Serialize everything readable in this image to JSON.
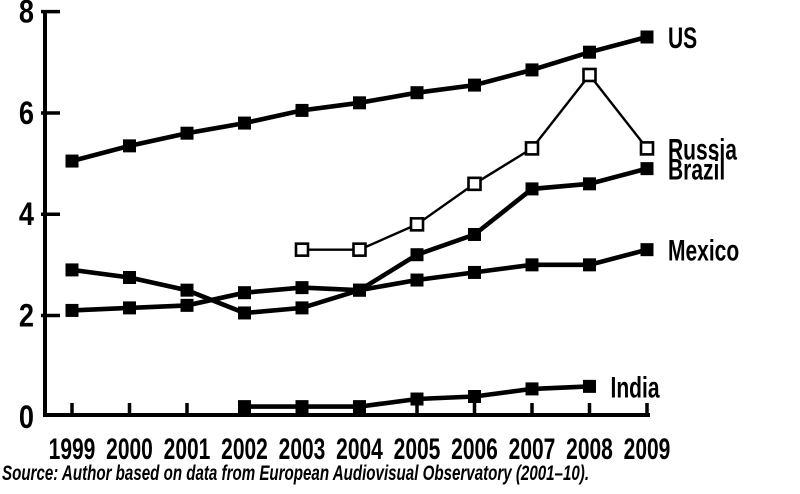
{
  "figure": {
    "background_color": "#ffffff",
    "ink_color": "#000000"
  },
  "chart_data": {
    "type": "line",
    "title": "",
    "xlabel": "",
    "ylabel": "",
    "x_categories": [
      "1999",
      "2000",
      "2001",
      "2002",
      "2003",
      "2004",
      "2005",
      "2006",
      "2007",
      "2008",
      "2009"
    ],
    "ylim": [
      0,
      8
    ],
    "yticks": [
      0,
      2,
      4,
      6,
      8
    ],
    "grid": false,
    "legend_position": "line-end-labels-right",
    "series": [
      {
        "label": "US",
        "marker": "filled-square",
        "values": [
          5.05,
          5.35,
          5.6,
          5.8,
          6.05,
          6.2,
          6.4,
          6.55,
          6.85,
          7.2,
          7.5
        ]
      },
      {
        "label": "Russia",
        "marker": "open-square",
        "values": [
          null,
          null,
          null,
          null,
          3.3,
          3.3,
          3.8,
          4.6,
          5.3,
          6.75,
          5.3
        ]
      },
      {
        "label": "Brazil",
        "marker": "filled-square",
        "values": [
          2.9,
          2.75,
          2.5,
          2.05,
          2.15,
          2.5,
          3.2,
          3.6,
          4.5,
          4.6,
          4.9
        ]
      },
      {
        "label": "Mexico",
        "marker": "filled-square",
        "values": [
          2.1,
          2.15,
          2.2,
          2.45,
          2.55,
          2.5,
          2.7,
          2.85,
          3.0,
          3.0,
          3.3
        ]
      },
      {
        "label": "India",
        "marker": "filled-square",
        "values": [
          null,
          null,
          null,
          0.2,
          0.2,
          0.2,
          0.35,
          0.4,
          0.55,
          0.6,
          null
        ]
      }
    ]
  },
  "source_note": "Source: Author based on data from European Audiovisual Observatory (2001–10)."
}
